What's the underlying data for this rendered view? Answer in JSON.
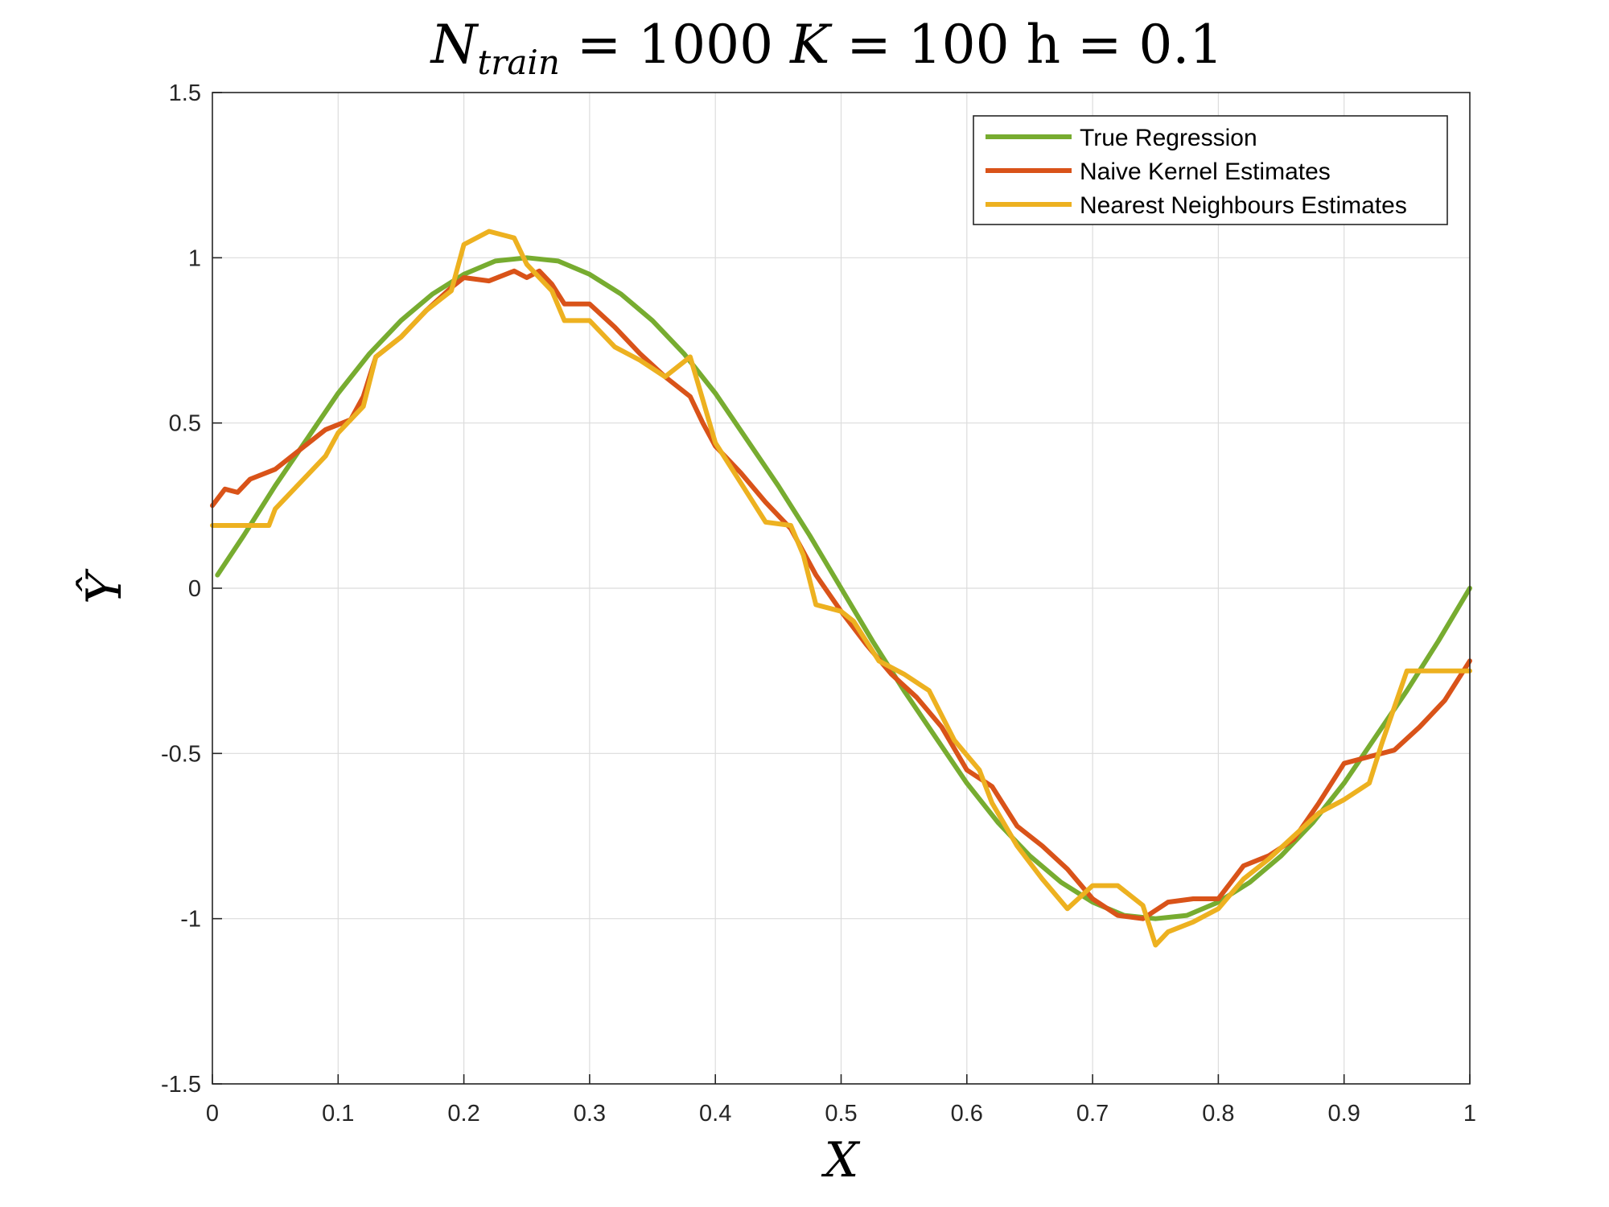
{
  "chart_data": {
    "type": "line",
    "title": "N_train = 1000  K = 100  h = 0.1",
    "title_parts": {
      "n_symbol": "N",
      "n_subscript": "train",
      "n_value": " = 1000 ",
      "k_symbol": "K",
      "k_value": " = 100 ",
      "h_label": "h = 0.1"
    },
    "xlabel": "X",
    "ylabel": "Ŷ",
    "xlim": [
      0,
      1
    ],
    "ylim": [
      -1.5,
      1.5
    ],
    "x_ticks": [
      "0",
      "0.1",
      "0.2",
      "0.3",
      "0.4",
      "0.5",
      "0.6",
      "0.7",
      "0.8",
      "0.9",
      "1"
    ],
    "y_ticks": [
      "1.5",
      "1",
      "0.5",
      "0",
      "-0.5",
      "-1",
      "-1.5"
    ],
    "grid": true,
    "legend_position": "top-right",
    "series": [
      {
        "name": "True Regression",
        "color": "#77AC30",
        "x": [
          0.004,
          0.025,
          0.05,
          0.075,
          0.1,
          0.125,
          0.15,
          0.175,
          0.2,
          0.225,
          0.25,
          0.275,
          0.3,
          0.325,
          0.35,
          0.375,
          0.4,
          0.425,
          0.45,
          0.475,
          0.5,
          0.525,
          0.55,
          0.575,
          0.6,
          0.625,
          0.65,
          0.675,
          0.7,
          0.725,
          0.75,
          0.775,
          0.8,
          0.825,
          0.85,
          0.875,
          0.9,
          0.925,
          0.95,
          0.975,
          1.0
        ],
        "y": [
          0.04,
          0.16,
          0.31,
          0.45,
          0.59,
          0.71,
          0.81,
          0.89,
          0.95,
          0.99,
          1.0,
          0.99,
          0.95,
          0.89,
          0.81,
          0.71,
          0.59,
          0.45,
          0.31,
          0.16,
          0.0,
          -0.16,
          -0.31,
          -0.45,
          -0.59,
          -0.71,
          -0.81,
          -0.89,
          -0.95,
          -0.99,
          -1.0,
          -0.99,
          -0.95,
          -0.89,
          -0.81,
          -0.71,
          -0.59,
          -0.45,
          -0.31,
          -0.16,
          0.0
        ]
      },
      {
        "name": "Naive Kernel Estimates",
        "color": "#D95319",
        "x": [
          0.0,
          0.01,
          0.02,
          0.03,
          0.05,
          0.07,
          0.09,
          0.11,
          0.12,
          0.13,
          0.15,
          0.17,
          0.19,
          0.2,
          0.22,
          0.24,
          0.25,
          0.26,
          0.27,
          0.28,
          0.3,
          0.32,
          0.34,
          0.36,
          0.38,
          0.39,
          0.4,
          0.42,
          0.44,
          0.46,
          0.48,
          0.5,
          0.52,
          0.54,
          0.56,
          0.58,
          0.6,
          0.62,
          0.64,
          0.66,
          0.68,
          0.7,
          0.72,
          0.74,
          0.76,
          0.78,
          0.8,
          0.82,
          0.84,
          0.86,
          0.88,
          0.9,
          0.92,
          0.94,
          0.96,
          0.98,
          1.0
        ],
        "y": [
          0.25,
          0.3,
          0.29,
          0.33,
          0.36,
          0.42,
          0.48,
          0.51,
          0.58,
          0.7,
          0.76,
          0.84,
          0.91,
          0.94,
          0.93,
          0.96,
          0.94,
          0.96,
          0.92,
          0.86,
          0.86,
          0.79,
          0.71,
          0.64,
          0.58,
          0.5,
          0.43,
          0.35,
          0.26,
          0.18,
          0.04,
          -0.07,
          -0.17,
          -0.26,
          -0.33,
          -0.42,
          -0.55,
          -0.6,
          -0.72,
          -0.78,
          -0.85,
          -0.94,
          -0.99,
          -1.0,
          -0.95,
          -0.94,
          -0.94,
          -0.84,
          -0.81,
          -0.76,
          -0.65,
          -0.53,
          -0.51,
          -0.49,
          -0.42,
          -0.34,
          -0.22
        ]
      },
      {
        "name": "Nearest Neighbours Estimates",
        "color": "#EDB120",
        "x": [
          0.0,
          0.02,
          0.045,
          0.05,
          0.07,
          0.09,
          0.1,
          0.11,
          0.12,
          0.13,
          0.15,
          0.17,
          0.18,
          0.19,
          0.2,
          0.22,
          0.24,
          0.25,
          0.27,
          0.28,
          0.3,
          0.32,
          0.34,
          0.36,
          0.38,
          0.39,
          0.4,
          0.41,
          0.43,
          0.44,
          0.46,
          0.47,
          0.48,
          0.5,
          0.51,
          0.53,
          0.55,
          0.57,
          0.59,
          0.61,
          0.62,
          0.64,
          0.66,
          0.68,
          0.7,
          0.72,
          0.74,
          0.75,
          0.76,
          0.78,
          0.8,
          0.82,
          0.84,
          0.86,
          0.88,
          0.9,
          0.92,
          0.93,
          0.95,
          1.0
        ],
        "y": [
          0.19,
          0.19,
          0.19,
          0.24,
          0.32,
          0.4,
          0.47,
          0.51,
          0.55,
          0.7,
          0.76,
          0.84,
          0.87,
          0.9,
          1.04,
          1.08,
          1.06,
          0.98,
          0.9,
          0.81,
          0.81,
          0.73,
          0.69,
          0.64,
          0.7,
          0.57,
          0.44,
          0.38,
          0.26,
          0.2,
          0.19,
          0.1,
          -0.05,
          -0.07,
          -0.1,
          -0.22,
          -0.26,
          -0.31,
          -0.46,
          -0.55,
          -0.65,
          -0.78,
          -0.88,
          -0.97,
          -0.9,
          -0.9,
          -0.96,
          -1.08,
          -1.04,
          -1.01,
          -0.97,
          -0.88,
          -0.82,
          -0.75,
          -0.68,
          -0.64,
          -0.59,
          -0.47,
          -0.25,
          -0.25
        ]
      }
    ]
  }
}
